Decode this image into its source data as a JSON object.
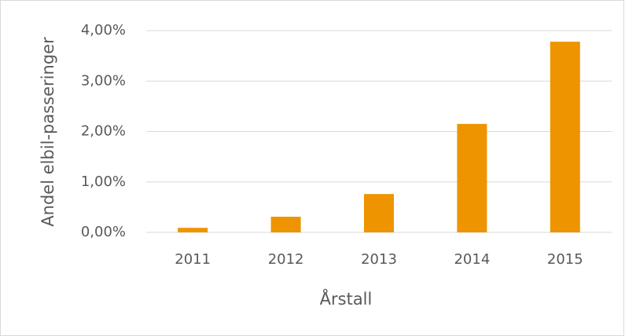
{
  "chart_data": {
    "type": "bar",
    "x_label": "Årstall",
    "y_label": "Andel elbil-passeringer",
    "categories": [
      "2011",
      "2012",
      "2013",
      "2014",
      "2015"
    ],
    "values": [
      0.09,
      0.31,
      0.76,
      2.15,
      3.78
    ],
    "color": "#ed9400",
    "ylim": [
      0,
      4
    ],
    "yticks": [
      {
        "value": 0,
        "label": "0,00%"
      },
      {
        "value": 1,
        "label": "1,00%"
      },
      {
        "value": 2,
        "label": "2,00%"
      },
      {
        "value": 3,
        "label": "3,00%"
      },
      {
        "value": 4,
        "label": "4,00%"
      }
    ],
    "grid": true
  }
}
